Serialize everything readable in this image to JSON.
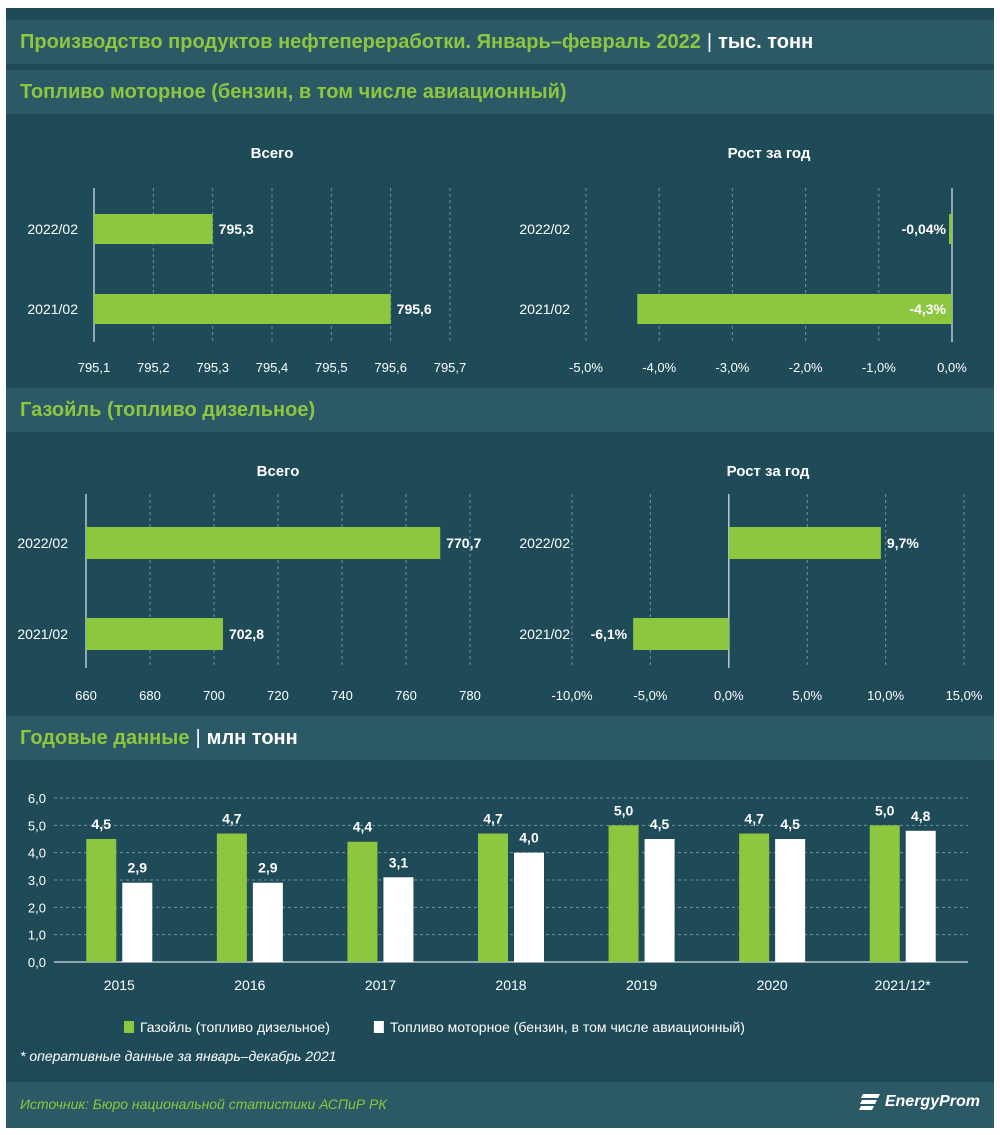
{
  "header": {
    "title": "Производство продуктов нефтепереработки. Январь–февраль 2022",
    "unit": "тыс. тонн"
  },
  "sections": {
    "motor_fuel": {
      "title": "Топливо моторное (бензин, в том числе авиационный)"
    },
    "diesel": {
      "title": "Газойль (топливо дизельное)"
    },
    "annual": {
      "title": "Годовые данные",
      "unit": "млн тонн"
    }
  },
  "chart_data": [
    {
      "id": "motor_total",
      "type": "bar",
      "orientation": "horizontal",
      "title": "Всего",
      "categories": [
        "2022/02",
        "2021/02"
      ],
      "values": [
        795.3,
        795.6
      ],
      "value_labels": [
        "795,3",
        "795,6"
      ],
      "xlim": [
        795.1,
        795.7
      ],
      "ticks": [
        795.1,
        795.2,
        795.3,
        795.4,
        795.5,
        795.6,
        795.7
      ],
      "tick_labels": [
        "795,1",
        "795,2",
        "795,3",
        "795,4",
        "795,5",
        "795,6",
        "795,7"
      ],
      "grid": true,
      "color": "#8dc63f"
    },
    {
      "id": "motor_growth",
      "type": "bar",
      "orientation": "horizontal",
      "title": "Рост за год",
      "categories": [
        "2022/02",
        "2021/02"
      ],
      "values": [
        -0.04,
        -4.3
      ],
      "value_labels": [
        "-0,04%",
        "-4,3%"
      ],
      "xlim": [
        -5,
        0
      ],
      "ticks": [
        -5,
        -4,
        -3,
        -2,
        -1,
        0
      ],
      "tick_labels": [
        "-5,0%",
        "-4,0%",
        "-3,0%",
        "-2,0%",
        "-1,0%",
        "0,0%"
      ],
      "grid": true,
      "color": "#8dc63f"
    },
    {
      "id": "diesel_total",
      "type": "bar",
      "orientation": "horizontal",
      "title": "Всего",
      "categories": [
        "2022/02",
        "2021/02"
      ],
      "values": [
        770.7,
        702.8
      ],
      "value_labels": [
        "770,7",
        "702,8"
      ],
      "xlim": [
        660,
        780
      ],
      "ticks": [
        660,
        680,
        700,
        720,
        740,
        760,
        780
      ],
      "tick_labels": [
        "660",
        "680",
        "700",
        "720",
        "740",
        "760",
        "780"
      ],
      "grid": true,
      "color": "#8dc63f"
    },
    {
      "id": "diesel_growth",
      "type": "bar",
      "orientation": "horizontal",
      "title": "Рост за год",
      "categories": [
        "2022/02",
        "2021/02"
      ],
      "values": [
        9.7,
        -6.1
      ],
      "value_labels": [
        "9,7%",
        "-6,1%"
      ],
      "xlim": [
        -10,
        15
      ],
      "ticks": [
        -10,
        -5,
        0,
        5,
        10,
        15
      ],
      "tick_labels": [
        "-10,0%",
        "-5,0%",
        "0,0%",
        "5,0%",
        "10,0%",
        "15,0%"
      ],
      "grid": true,
      "color": "#8dc63f"
    },
    {
      "id": "annual",
      "type": "bar",
      "orientation": "vertical",
      "categories": [
        "2015",
        "2016",
        "2017",
        "2018",
        "2019",
        "2020",
        "2021/12*"
      ],
      "series": [
        {
          "name": "Газойль (топливо дизельное)",
          "values": [
            4.5,
            4.7,
            4.4,
            4.7,
            5.0,
            4.7,
            5.0
          ],
          "value_labels": [
            "4,5",
            "4,7",
            "4,4",
            "4,7",
            "5,0",
            "4,7",
            "5,0"
          ],
          "color": "#8dc63f"
        },
        {
          "name": "Топливо моторное (бензин, в том числе авиационный)",
          "values": [
            2.9,
            2.9,
            3.1,
            4.0,
            4.5,
            4.5,
            4.8
          ],
          "value_labels": [
            "2,9",
            "2,9",
            "3,1",
            "4,0",
            "4,5",
            "4,5",
            "4,8"
          ],
          "color": "#ffffff"
        }
      ],
      "ylim": [
        0,
        6
      ],
      "yticks": [
        0,
        1,
        2,
        3,
        4,
        5,
        6
      ],
      "ytick_labels": [
        "0,0",
        "1,0",
        "2,0",
        "3,0",
        "4,0",
        "5,0",
        "6,0"
      ],
      "grid": true,
      "legend_position": "bottom"
    }
  ],
  "footnote": "* оперативные данные за январь–декабрь 2021",
  "source": "Источник: Бюро национальной статистики АСПиР РК",
  "logo": {
    "text": "EnergyProm",
    "icon": "energyprom-logo-icon"
  }
}
